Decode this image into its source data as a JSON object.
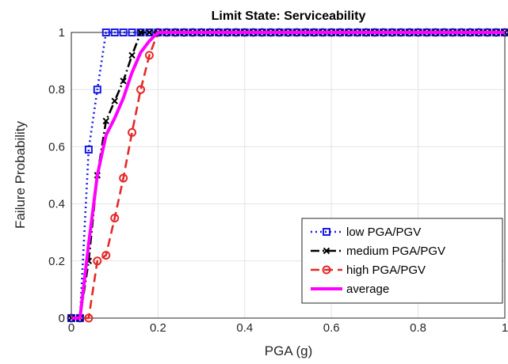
{
  "chart_data": {
    "type": "line",
    "title": "Limit State: Serviceability",
    "xlabel": "PGA (g)",
    "ylabel": "Failure Probability",
    "xlim": [
      0,
      1
    ],
    "ylim": [
      0,
      1
    ],
    "grid": true,
    "legend_position": "bottom-right",
    "xticks": [
      "0",
      "0.2",
      "0.4",
      "0.6",
      "0.8",
      "1"
    ],
    "yticks": [
      "0",
      "0.2",
      "0.4",
      "0.6",
      "0.8",
      "1"
    ],
    "x": [
      0,
      0.02,
      0.04,
      0.06,
      0.08,
      0.1,
      0.12,
      0.14,
      0.16,
      0.18,
      0.2,
      0.22,
      0.24,
      0.26,
      0.28,
      0.3,
      0.32,
      0.34,
      0.36,
      0.38,
      0.4,
      0.42,
      0.44,
      0.46,
      0.48,
      0.5,
      0.52,
      0.54,
      0.56,
      0.58,
      0.6,
      0.62,
      0.64,
      0.66,
      0.68,
      0.7,
      0.72,
      0.74,
      0.76,
      0.78,
      0.8,
      0.82,
      0.84,
      0.86,
      0.88,
      0.9,
      0.92,
      0.94,
      0.96,
      0.98,
      1.0
    ],
    "series": [
      {
        "name": "low PGA/PGV",
        "color": "#1a1ae6",
        "marker": "square",
        "values": [
          0,
          0,
          0.59,
          0.8,
          1,
          1,
          1,
          1,
          1,
          1,
          1,
          1,
          1,
          1,
          1,
          1,
          1,
          1,
          1,
          1,
          1,
          1,
          1,
          1,
          1,
          1,
          1,
          1,
          1,
          1,
          1,
          1,
          1,
          1,
          1,
          1,
          1,
          1,
          1,
          1,
          1,
          1,
          1,
          1,
          1,
          1,
          1,
          1,
          1,
          1,
          1
        ]
      },
      {
        "name": "medium PGA/PGV",
        "color": "#000000",
        "marker": "x",
        "values": [
          0,
          0,
          0.2,
          0.5,
          0.69,
          0.76,
          0.83,
          0.92,
          1,
          1,
          1,
          1,
          1,
          1,
          1,
          1,
          1,
          1,
          1,
          1,
          1,
          1,
          1,
          1,
          1,
          1,
          1,
          1,
          1,
          1,
          1,
          1,
          1,
          1,
          1,
          1,
          1,
          1,
          1,
          1,
          1,
          1,
          1,
          1,
          1,
          1,
          1,
          1,
          1,
          1,
          1
        ]
      },
      {
        "name": "high PGA/PGV",
        "color": "#e62828",
        "marker": "circle",
        "values": [
          0,
          0,
          0,
          0.2,
          0.22,
          0.35,
          0.49,
          0.65,
          0.8,
          0.92,
          1,
          1,
          1,
          1,
          1,
          1,
          1,
          1,
          1,
          1,
          1,
          1,
          1,
          1,
          1,
          1,
          1,
          1,
          1,
          1,
          1,
          1,
          1,
          1,
          1,
          1,
          1,
          1,
          1,
          1,
          1,
          1,
          1,
          1,
          1,
          1,
          1,
          1,
          1,
          1,
          1
        ]
      },
      {
        "name": "average",
        "color": "#ff00ff",
        "marker": "none",
        "values": [
          0,
          0,
          0.26,
          0.5,
          0.64,
          0.7,
          0.77,
          0.86,
          0.93,
          0.97,
          1,
          1,
          1,
          1,
          1,
          1,
          1,
          1,
          1,
          1,
          1,
          1,
          1,
          1,
          1,
          1,
          1,
          1,
          1,
          1,
          1,
          1,
          1,
          1,
          1,
          1,
          1,
          1,
          1,
          1,
          1,
          1,
          1,
          1,
          1,
          1,
          1,
          1,
          1,
          1,
          1
        ]
      }
    ]
  }
}
